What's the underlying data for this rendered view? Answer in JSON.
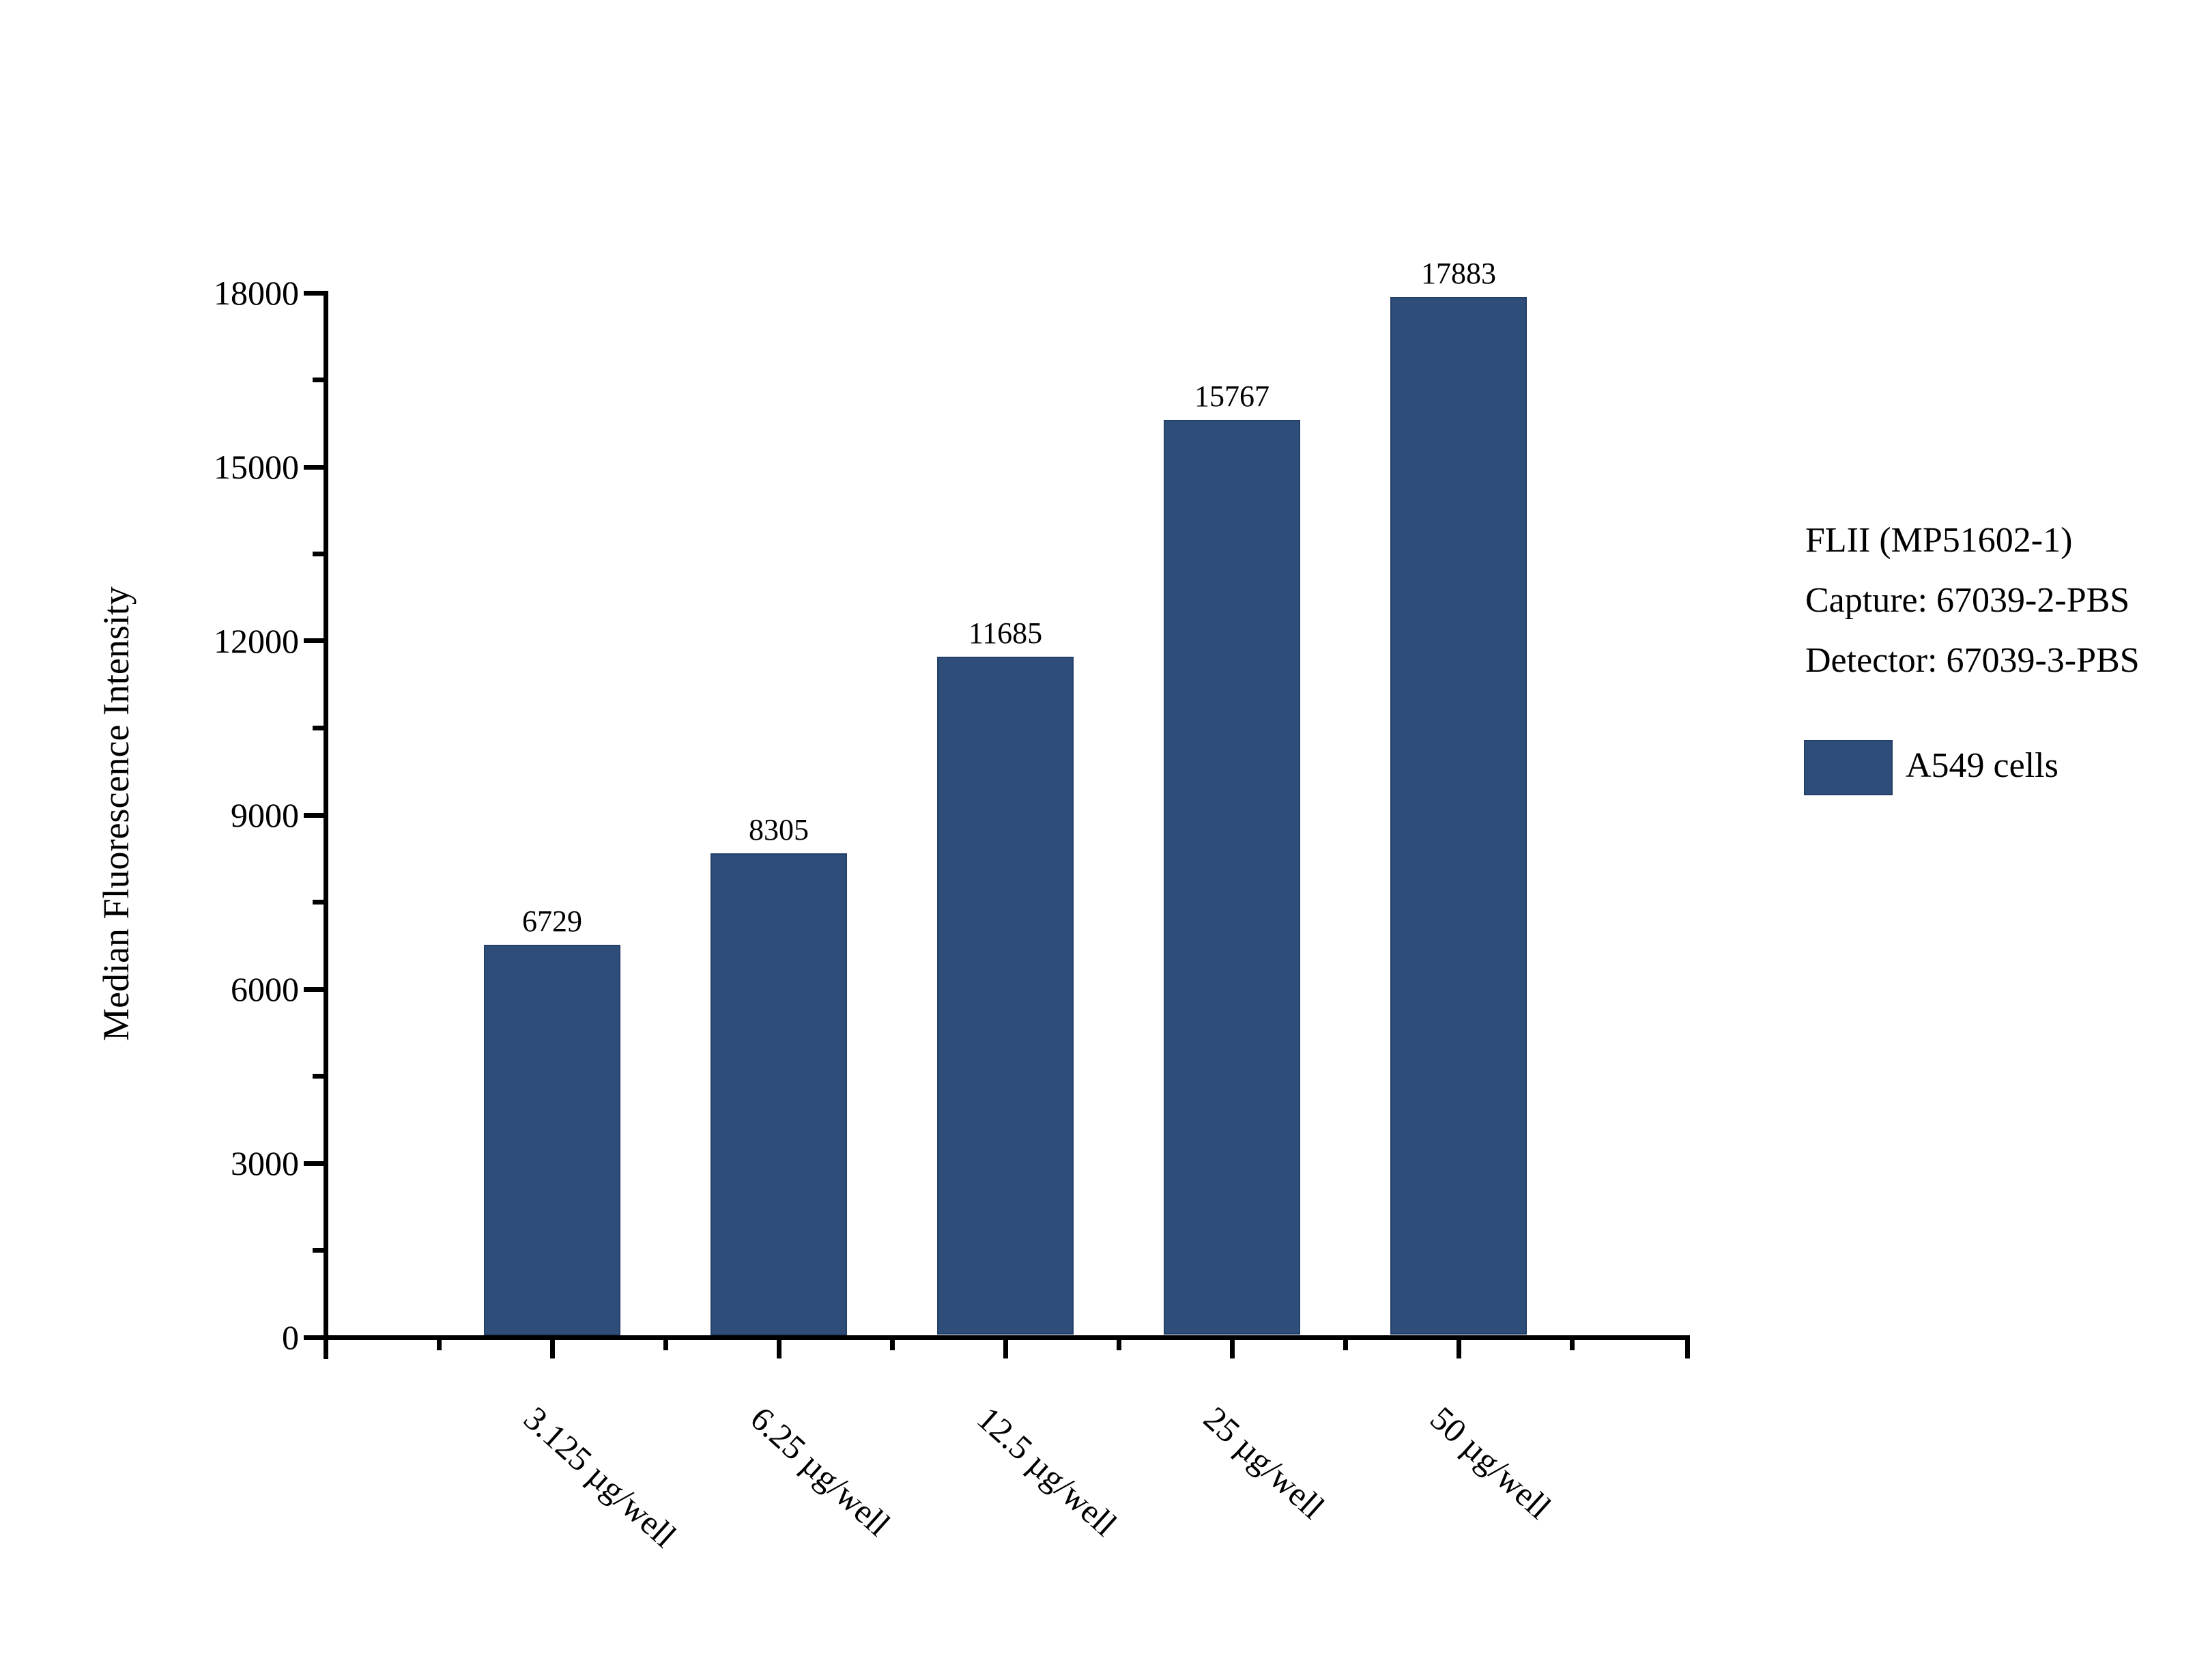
{
  "chart_data": {
    "type": "bar",
    "categories": [
      "3.125 µg/well",
      "6.25 µg/well",
      "12.5 µg/well",
      "25 µg/well",
      "50 µg/well"
    ],
    "series": [
      {
        "name": "A549 cells",
        "values": [
          6729,
          8305,
          11685,
          15767,
          17883
        ]
      }
    ],
    "bar_value_labels": [
      "6729",
      "8305",
      "11685",
      "15767",
      "17883"
    ],
    "title": "",
    "xlabel": "",
    "ylabel": "Median Fluorescence Intensity",
    "ylim": [
      0,
      18000
    ],
    "ytick_interval": 3000,
    "yminor_interval": 1500,
    "ytick_labels": [
      "0",
      "3000",
      "6000",
      "9000",
      "12000",
      "15000",
      "18000"
    ],
    "grid": false,
    "legend_position": "right",
    "annotations": [
      "FLII (MP51602-1)",
      "Capture: 67039-2-PBS",
      "Detector: 67039-3-PBS"
    ],
    "colors": {
      "bar_fill": "#2e4d78",
      "bar_edge": "#24406a",
      "axis": "#000000",
      "text": "#000000",
      "background": "#ffffff"
    }
  }
}
